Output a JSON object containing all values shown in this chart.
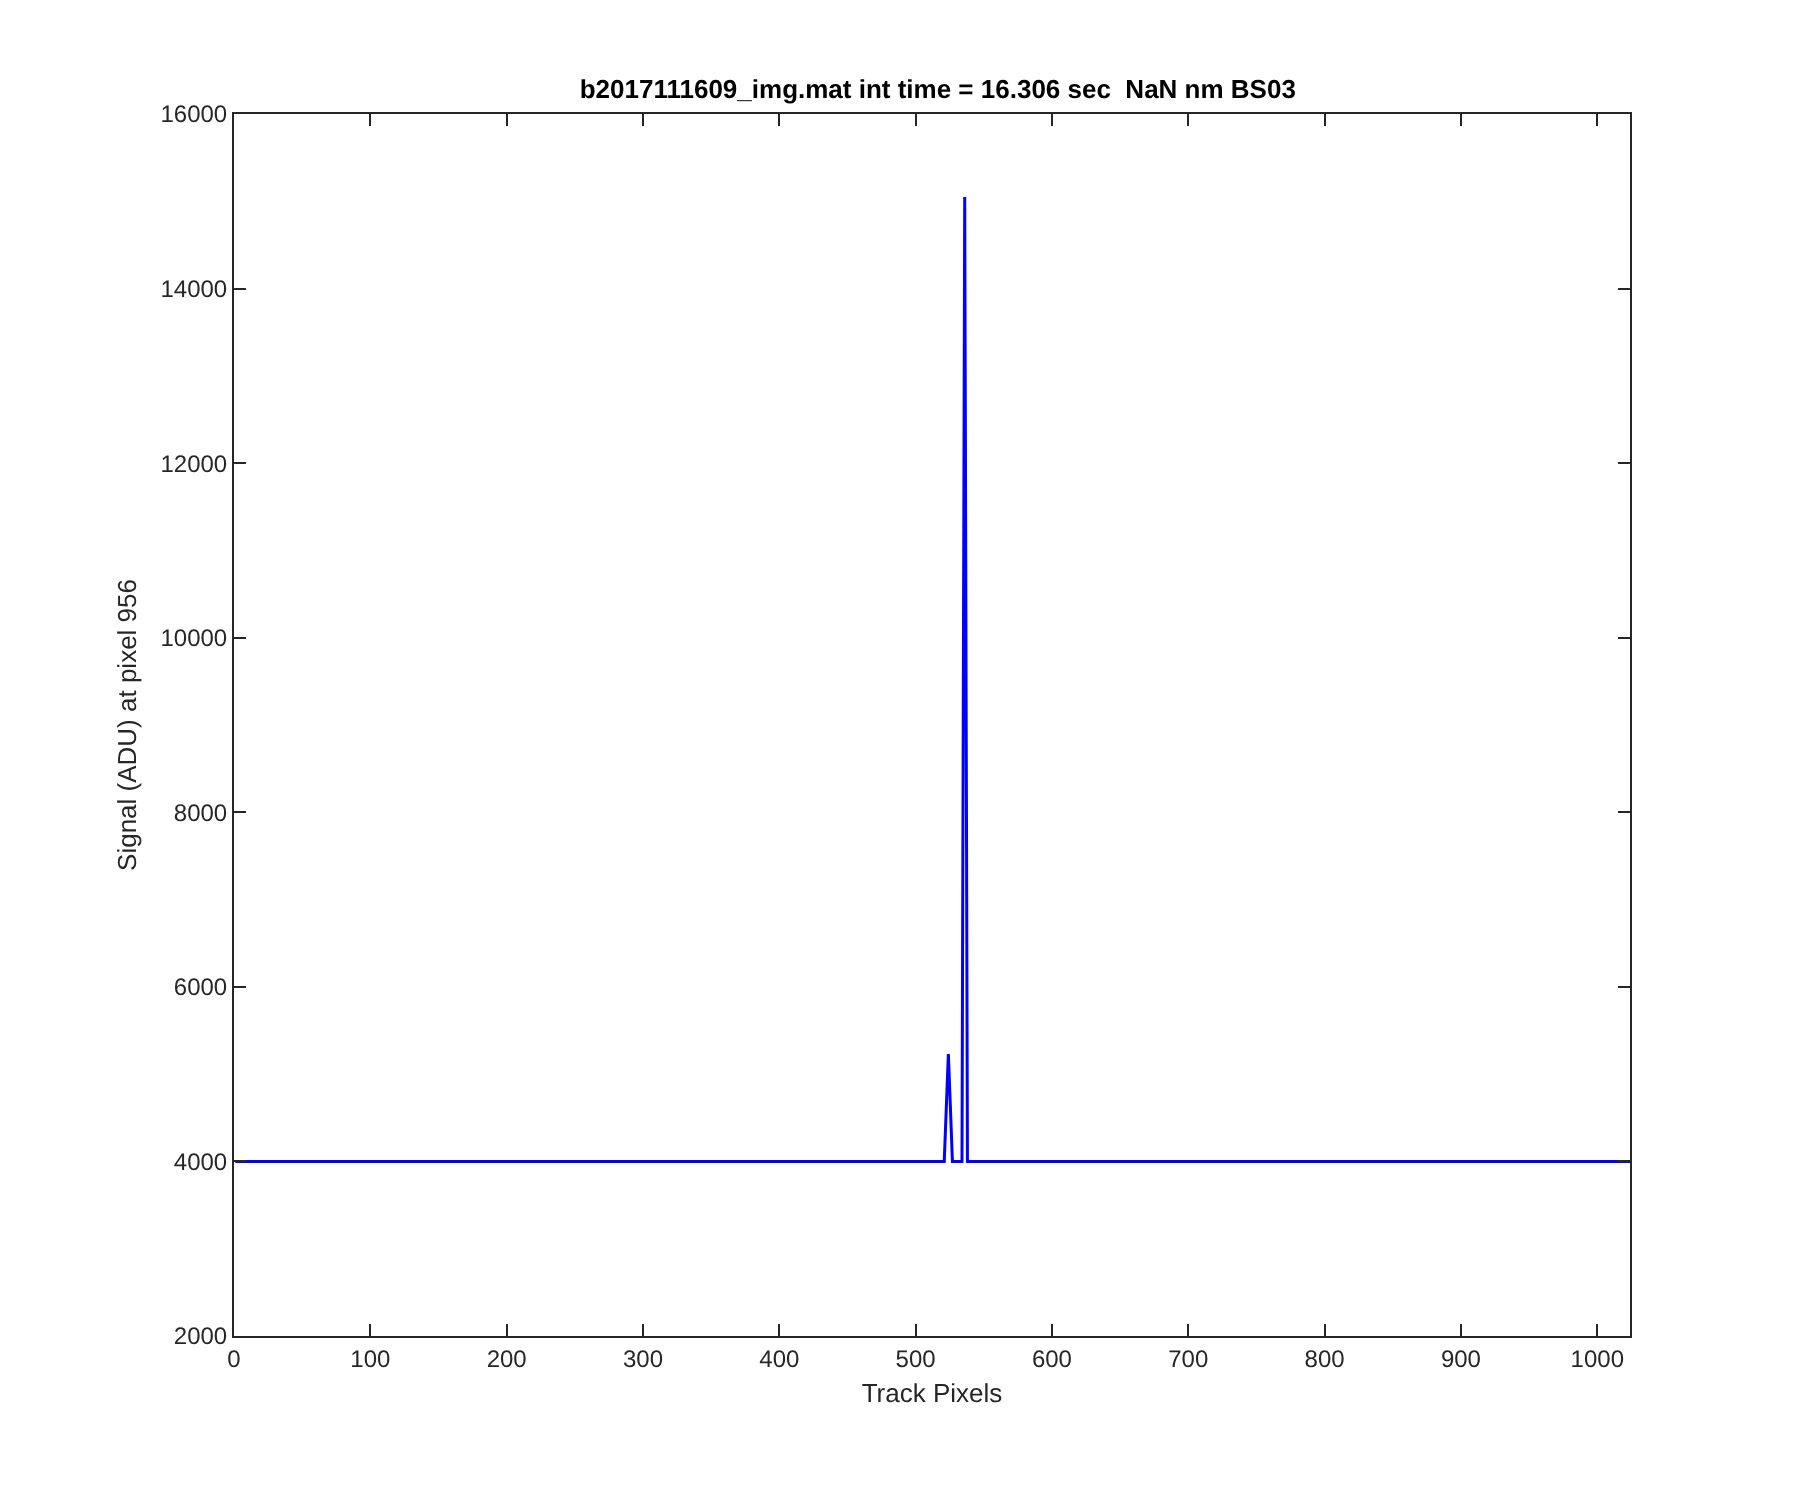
{
  "chart_data": {
    "type": "line",
    "title": "b2017111609_img.mat int time = 16.306 sec  NaN nm BS03",
    "xlabel": "Track Pixels",
    "ylabel": "Signal (ADU) at pixel 956",
    "x": [
      1,
      30,
      60,
      90,
      120,
      150,
      180,
      210,
      240,
      270,
      300,
      330,
      360,
      390,
      420,
      450,
      480,
      500,
      515,
      521,
      524,
      527,
      531,
      534,
      536,
      538,
      545,
      560,
      590,
      620,
      650,
      680,
      710,
      740,
      770,
      800,
      830,
      860,
      900,
      930,
      960,
      990,
      1024
    ],
    "series": [
      {
        "color": "#0000ff",
        "values": [
          4000,
          4000,
          4000,
          4000,
          4000,
          4000,
          4000,
          4000,
          4000,
          4000,
          4000,
          4000,
          4000,
          4000,
          4000,
          4000,
          4000,
          4000,
          4000,
          4000,
          5230,
          4000,
          4000,
          4000,
          15050,
          4000,
          4000,
          4000,
          4000,
          4000,
          4000,
          4000,
          4000,
          4000,
          4000,
          4000,
          4000,
          4000,
          4000,
          4000,
          4000,
          4000,
          4000
        ]
      }
    ],
    "xlim": [
      0,
      1024
    ],
    "ylim": [
      2000,
      16000
    ],
    "xticks": [
      0,
      100,
      200,
      300,
      400,
      500,
      600,
      700,
      800,
      900,
      1000
    ],
    "yticks": [
      2000,
      4000,
      6000,
      8000,
      10000,
      12000,
      14000,
      16000
    ],
    "marker": "none",
    "line_style": "solid"
  }
}
